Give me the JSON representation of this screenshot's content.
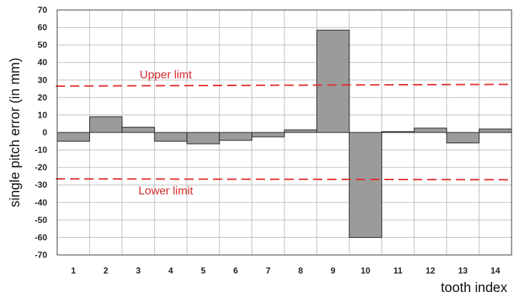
{
  "chart_data": {
    "type": "bar",
    "categories": [
      "1",
      "2",
      "3",
      "4",
      "5",
      "6",
      "7",
      "8",
      "9",
      "10",
      "11",
      "12",
      "13",
      "14"
    ],
    "values": [
      -5,
      9,
      3,
      -5,
      -6.5,
      -4.5,
      -2.5,
      1.5,
      58.5,
      -60,
      0.5,
      2.5,
      -6,
      2
    ],
    "xlabel": "tooth index",
    "ylabel": "single pitch error (in mm)",
    "ylim": [
      -70,
      70
    ],
    "yticks": [
      "70",
      "60",
      "50",
      "40",
      "30",
      "20",
      "10",
      "0",
      "-10",
      "-20",
      "-30",
      "-40",
      "-50",
      "-60",
      "-70"
    ],
    "grid": true,
    "bar_color": "#9b9b9b",
    "reference_lines": [
      {
        "label": "Upper limt",
        "y_start": 26.5,
        "y_end": 27.5,
        "color": "#e03030",
        "style": "dashed"
      },
      {
        "label": "Lower limit",
        "y_start": -26.5,
        "y_end": -27,
        "color": "#e03030",
        "style": "dashed"
      }
    ]
  }
}
